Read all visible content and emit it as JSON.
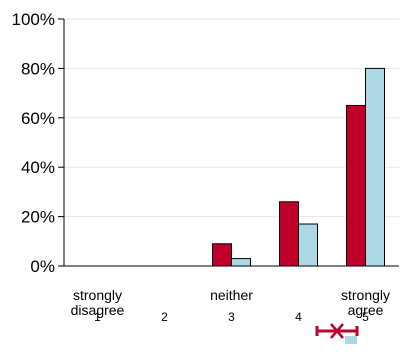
{
  "chart_data": {
    "type": "bar",
    "title": "",
    "xlabel": "",
    "ylabel": "",
    "ylim": [
      0,
      100
    ],
    "y_ticks": [
      "0%",
      "20%",
      "40%",
      "60%",
      "80%",
      "100%"
    ],
    "y_tick_values": [
      0,
      20,
      40,
      60,
      80,
      100
    ],
    "grid": true,
    "legend": "none",
    "categories": [
      {
        "number": "1",
        "label_lines": [
          "strongly",
          "disagree"
        ]
      },
      {
        "number": "2",
        "label_lines": []
      },
      {
        "number": "3",
        "label_lines": [
          "neither"
        ]
      },
      {
        "number": "4",
        "label_lines": []
      },
      {
        "number": "5",
        "label_lines": [
          "strongly",
          "agree"
        ]
      }
    ],
    "series": [
      {
        "values": [
          0,
          0,
          9,
          26,
          65
        ],
        "color": "#c0002a"
      },
      {
        "values": [
          0,
          0,
          3,
          17,
          80
        ],
        "color": "#add8e6"
      }
    ]
  },
  "colors": {
    "axis": "#000000",
    "grid": "#e6e6e6",
    "marker": "#c0002a",
    "marker_secondary": "#add8e6"
  },
  "icons": {
    "range_marker": "error-bar-with-x-icon"
  }
}
